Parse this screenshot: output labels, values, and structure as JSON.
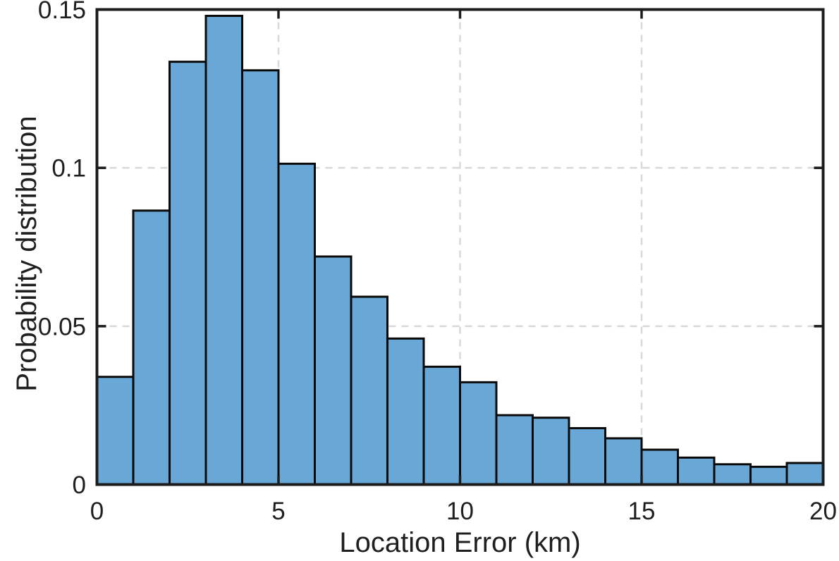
{
  "chart_data": {
    "type": "bar",
    "subtype": "histogram",
    "title": "",
    "xlabel": "Location Error (km)",
    "ylabel": "Probability distribution",
    "xlim": [
      0,
      20
    ],
    "ylim": [
      0,
      0.15
    ],
    "xticks": [
      0,
      5,
      10,
      15,
      20
    ],
    "xtick_labels": [
      "0",
      "5",
      "10",
      "15",
      "20"
    ],
    "yticks": [
      0,
      0.05,
      0.1,
      0.15
    ],
    "ytick_labels": [
      "0",
      "0.05",
      "0.1",
      "0.15"
    ],
    "grid": "dashed",
    "legend_position": "none",
    "bin_width_km": 1,
    "bin_edges": [
      0,
      1,
      2,
      3,
      4,
      5,
      6,
      7,
      8,
      9,
      10,
      11,
      12,
      13,
      14,
      15,
      16,
      17,
      18,
      19,
      20
    ],
    "categories": [
      "0-1",
      "1-2",
      "2-3",
      "3-4",
      "4-5",
      "5-6",
      "6-7",
      "7-8",
      "8-9",
      "9-10",
      "10-11",
      "11-12",
      "12-13",
      "13-14",
      "14-15",
      "15-16",
      "16-17",
      "17-18",
      "18-19",
      "19-20"
    ],
    "values": [
      0.034,
      0.0865,
      0.1335,
      0.148,
      0.1308,
      0.1013,
      0.072,
      0.0593,
      0.0461,
      0.0372,
      0.0323,
      0.0219,
      0.0211,
      0.0178,
      0.0146,
      0.011,
      0.0085,
      0.0064,
      0.0056,
      0.0068
    ]
  },
  "style": {
    "bar_fill": "#69A8D6",
    "bar_edge": "#0A0A0A",
    "axis_color": "#1C1C1C",
    "grid_color": "#D8D8D8",
    "text_color": "#1F1F1F",
    "background": "#FFFFFF"
  }
}
